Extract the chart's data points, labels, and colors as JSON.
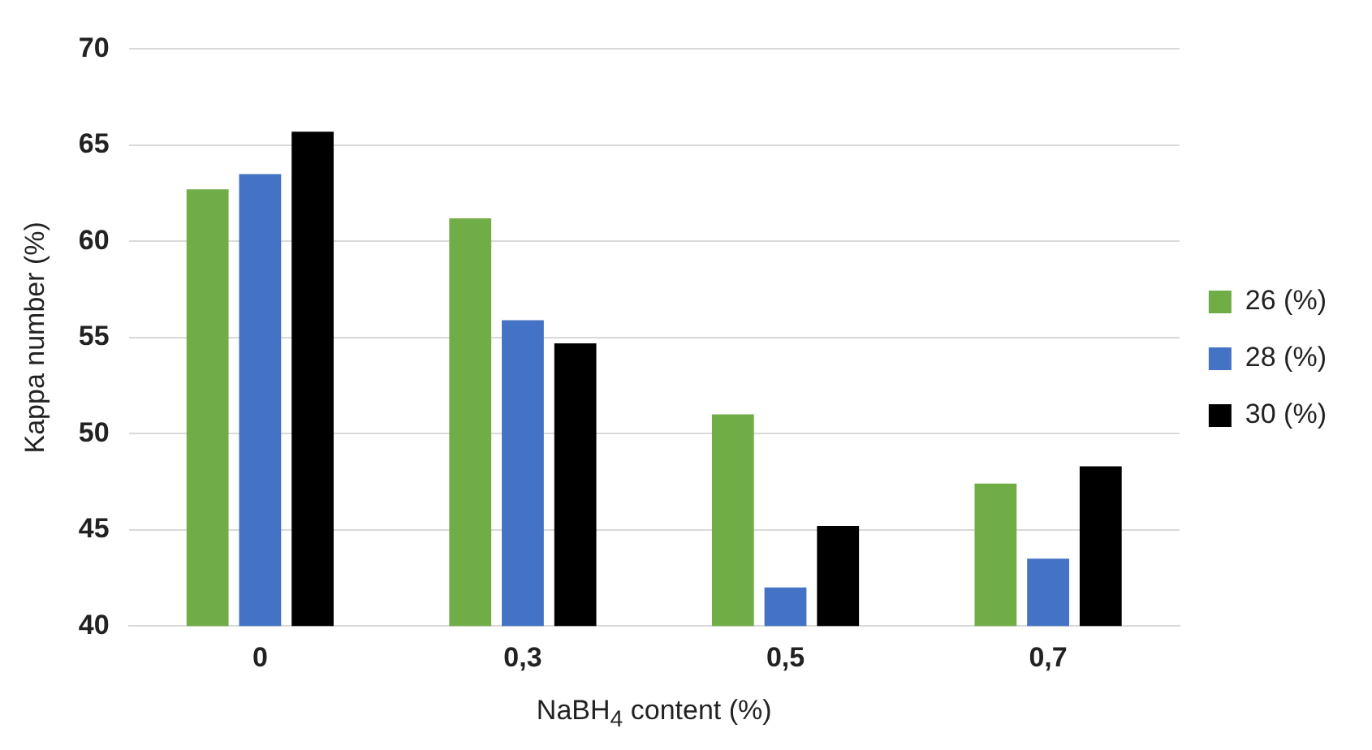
{
  "chart_data": {
    "type": "bar",
    "xlabel": "NaBH$_{4}$ content (%)",
    "ylabel": "Kappa number (%)",
    "categories": [
      "0",
      "0,3",
      "0,5",
      "0,7"
    ],
    "series": [
      {
        "name": "26 (%)",
        "color": "#70ad47",
        "values": [
          62.7,
          61.2,
          51.0,
          47.4
        ]
      },
      {
        "name": "28 (%)",
        "color": "#4472c4",
        "values": [
          63.5,
          55.9,
          42.0,
          43.5
        ]
      },
      {
        "name": "30 (%)",
        "color": "#000000",
        "values": [
          65.7,
          54.7,
          45.2,
          48.3
        ]
      }
    ],
    "ylim": [
      40,
      70
    ],
    "yticks": [
      40,
      45,
      50,
      55,
      60,
      65,
      70
    ],
    "grid": "y",
    "legend": "right"
  }
}
